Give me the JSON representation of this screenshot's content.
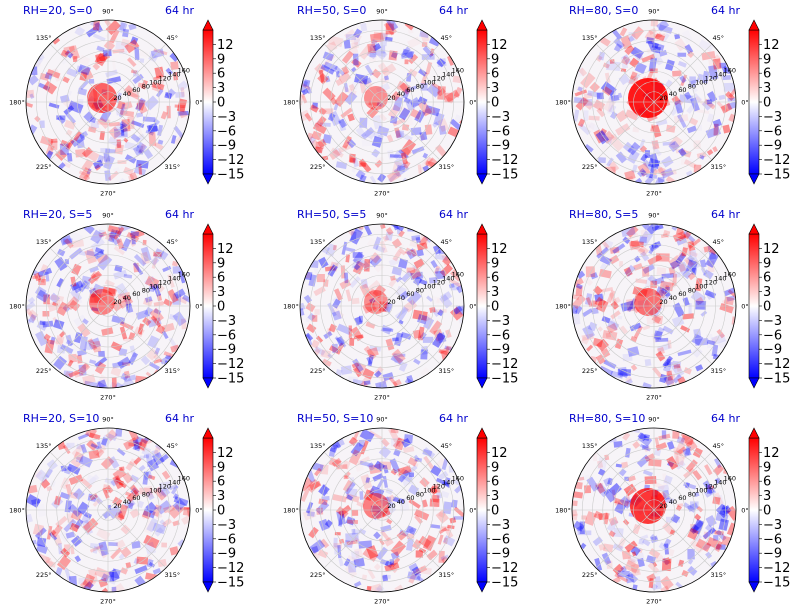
{
  "chart_data": {
    "type": "heatmap",
    "subtype": "polar",
    "colormap": "bwr",
    "color_range": [
      -15,
      15
    ],
    "colorbar_ticks": [
      "12",
      "9",
      "6",
      "3",
      "0",
      "−3",
      "−6",
      "−9",
      "−12",
      "−15"
    ],
    "colorbar_tick_values": [
      12,
      9,
      6,
      3,
      0,
      -3,
      -6,
      -9,
      -12,
      -15
    ],
    "angle_ticks": [
      "90°",
      "45°",
      "0°",
      "315°",
      "270°",
      "225°",
      "180°",
      "135°"
    ],
    "angle_tick_values": [
      90,
      45,
      0,
      315,
      270,
      225,
      180,
      135
    ],
    "radial_ticks": [
      "20",
      "40",
      "60",
      "80",
      "100",
      "120",
      "140",
      "160"
    ],
    "radial_tick_values": [
      20,
      40,
      60,
      80,
      100,
      120,
      140,
      160
    ],
    "grid": true,
    "panels": [
      {
        "title": "RH=20, S=0",
        "time": "64 hr",
        "center": 0.5
      },
      {
        "title": "RH=50, S=0",
        "time": "64 hr",
        "center": 0.2
      },
      {
        "title": "RH=80, S=0",
        "time": "64 hr",
        "center": 1.0
      },
      {
        "title": "RH=20, S=5",
        "time": "64 hr",
        "center": 0.3
      },
      {
        "title": "RH=50, S=5",
        "time": "64 hr",
        "center": 0.2
      },
      {
        "title": "RH=80, S=5",
        "time": "64 hr",
        "center": 0.4
      },
      {
        "title": "RH=20, S=10",
        "time": "64 hr",
        "center": 0.0
      },
      {
        "title": "RH=50, S=10",
        "time": "64 hr",
        "center": 0.3
      },
      {
        "title": "RH=80, S=10",
        "time": "64 hr",
        "center": 0.8
      }
    ]
  }
}
